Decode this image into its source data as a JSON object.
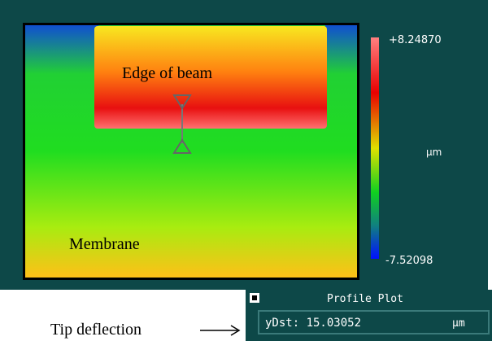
{
  "image": {
    "beam_label": "Edge of beam",
    "membrane_label": "Membrane"
  },
  "colorbar": {
    "max_label": "+8.24870",
    "unit": "µm",
    "min_label": "-7.52098"
  },
  "profile_panel": {
    "title": "Profile Plot",
    "measure_label": "yDst: 15.03052",
    "measure_unit": "µm"
  },
  "caption": "Tip deflection"
}
